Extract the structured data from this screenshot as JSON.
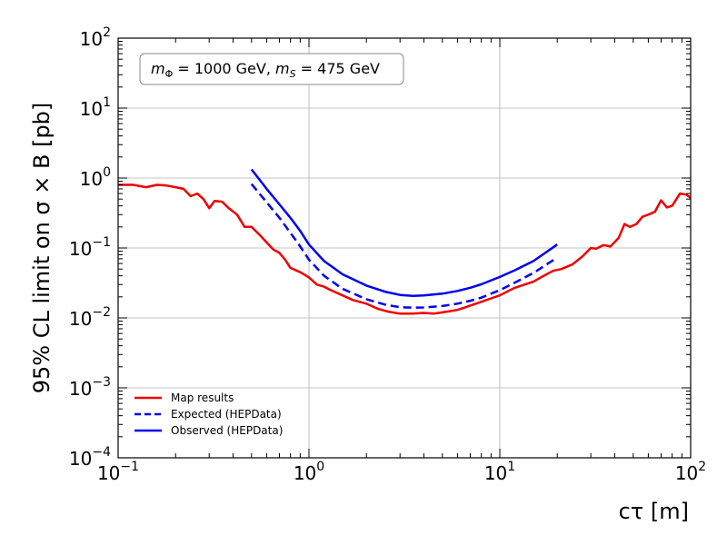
{
  "chart_data": {
    "type": "line",
    "xlabel": "cτ [m]",
    "ylabel": "95% CL limit on σ × B [pb]",
    "xscale": "log",
    "yscale": "log",
    "xlim": [
      0.1,
      100
    ],
    "ylim": [
      0.0001,
      100
    ],
    "grid": true,
    "legend_position": "lower-left",
    "x_tick_labels": [
      {
        "value": 0.1,
        "base": "10",
        "exp": "−1"
      },
      {
        "value": 1,
        "base": "10",
        "exp": "0"
      },
      {
        "value": 10,
        "base": "10",
        "exp": "1"
      },
      {
        "value": 100,
        "base": "10",
        "exp": "2"
      }
    ],
    "y_tick_labels": [
      {
        "value": 0.0001,
        "base": "10",
        "exp": "−4"
      },
      {
        "value": 0.001,
        "base": "10",
        "exp": "−3"
      },
      {
        "value": 0.01,
        "base": "10",
        "exp": "−2"
      },
      {
        "value": 0.1,
        "base": "10",
        "exp": "−1"
      },
      {
        "value": 1,
        "base": "10",
        "exp": "0"
      },
      {
        "value": 10,
        "base": "10",
        "exp": "1"
      },
      {
        "value": 100,
        "base": "10",
        "exp": "2"
      }
    ],
    "annotation": {
      "parts": [
        {
          "text": "m",
          "style": "italic"
        },
        {
          "text": "Φ",
          "style": "sub"
        },
        {
          "text": " = 1000 GeV, ",
          "style": "normal"
        },
        {
          "text": "m",
          "style": "italic"
        },
        {
          "text": "S",
          "style": "sub-italic"
        },
        {
          "text": " = 475 GeV",
          "style": "normal"
        }
      ]
    },
    "series": [
      {
        "name": "Map results",
        "color": "#ee0000",
        "dash": "solid",
        "x": [
          0.1,
          0.12,
          0.14,
          0.16,
          0.18,
          0.2,
          0.22,
          0.24,
          0.26,
          0.28,
          0.3,
          0.32,
          0.35,
          0.38,
          0.42,
          0.46,
          0.5,
          0.55,
          0.6,
          0.65,
          0.7,
          0.75,
          0.8,
          0.9,
          1.0,
          1.1,
          1.2,
          1.3,
          1.5,
          1.7,
          2.0,
          2.3,
          2.6,
          3.0,
          3.5,
          4.0,
          4.5,
          5.0,
          5.5,
          6.0,
          7.0,
          8.0,
          9.0,
          10.0,
          11.0,
          12.0,
          13.0,
          15.0,
          17.0,
          19.0,
          21.0,
          24.0,
          27.0,
          30.0,
          32.0,
          35.0,
          38.0,
          42.0,
          45.0,
          48.0,
          52.0,
          56.0,
          60.0,
          65.0,
          70.0,
          75.0,
          80.0,
          88.0,
          95.0,
          100.0
        ],
        "y": [
          0.8,
          0.8,
          0.74,
          0.8,
          0.78,
          0.74,
          0.7,
          0.55,
          0.6,
          0.5,
          0.37,
          0.47,
          0.46,
          0.37,
          0.3,
          0.2,
          0.2,
          0.155,
          0.12,
          0.095,
          0.085,
          0.068,
          0.052,
          0.045,
          0.038,
          0.03,
          0.028,
          0.025,
          0.021,
          0.018,
          0.016,
          0.0135,
          0.0123,
          0.0115,
          0.0115,
          0.0118,
          0.0115,
          0.012,
          0.0125,
          0.013,
          0.015,
          0.017,
          0.019,
          0.021,
          0.024,
          0.027,
          0.029,
          0.033,
          0.04,
          0.047,
          0.05,
          0.058,
          0.075,
          0.1,
          0.098,
          0.11,
          0.105,
          0.14,
          0.22,
          0.2,
          0.22,
          0.28,
          0.3,
          0.33,
          0.48,
          0.38,
          0.4,
          0.6,
          0.58,
          0.52
        ]
      },
      {
        "name": "Expected (HEPData)",
        "color": "#0000ee",
        "dash": "dashed",
        "x": [
          0.5,
          0.6,
          0.7,
          0.8,
          0.9,
          1.0,
          1.2,
          1.5,
          2.0,
          2.5,
          3.0,
          3.5,
          4.0,
          5.0,
          6.0,
          7.0,
          8.0,
          10.0,
          12.0,
          15.0,
          20.0
        ],
        "y": [
          0.82,
          0.45,
          0.27,
          0.165,
          0.105,
          0.068,
          0.04,
          0.026,
          0.0185,
          0.0155,
          0.0142,
          0.014,
          0.0141,
          0.0148,
          0.016,
          0.0176,
          0.0195,
          0.025,
          0.032,
          0.044,
          0.073
        ]
      },
      {
        "name": "Observed (HEPData)",
        "color": "#0000ee",
        "dash": "solid",
        "x": [
          0.5,
          0.6,
          0.7,
          0.8,
          0.9,
          1.0,
          1.2,
          1.5,
          2.0,
          2.5,
          3.0,
          3.5,
          4.0,
          5.0,
          6.0,
          7.0,
          8.0,
          10.0,
          12.0,
          15.0,
          20.0
        ],
        "y": [
          1.33,
          0.7,
          0.42,
          0.27,
          0.175,
          0.112,
          0.065,
          0.042,
          0.029,
          0.0237,
          0.0213,
          0.0207,
          0.021,
          0.0222,
          0.0243,
          0.027,
          0.0302,
          0.0385,
          0.048,
          0.065,
          0.112
        ]
      }
    ]
  }
}
